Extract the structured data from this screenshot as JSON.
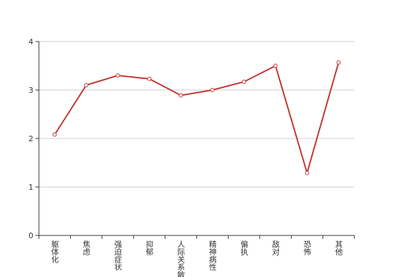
{
  "chart_data": {
    "type": "line",
    "categories": [
      "躯体化",
      "焦虑",
      "强迫症状",
      "抑郁",
      "人际关系敏感",
      "精神病性",
      "偏执",
      "敌对",
      "恐怖",
      "其他"
    ],
    "values": [
      2.08,
      3.1,
      3.3,
      3.23,
      2.89,
      3.0,
      3.17,
      3.5,
      1.29,
      3.57
    ],
    "color": "#c23531",
    "ylim": [
      0,
      4
    ],
    "yticks": [
      0,
      1,
      2,
      3,
      4
    ],
    "grid": true
  }
}
